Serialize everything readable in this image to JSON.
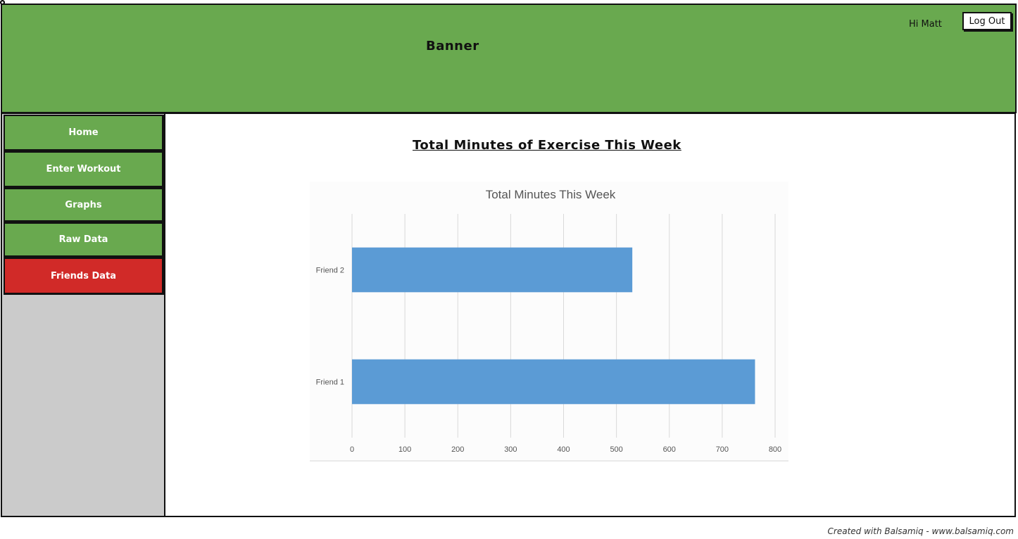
{
  "banner": {
    "title": "Banner",
    "greeting": "Hi Matt",
    "logout_label": "Log Out"
  },
  "sidebar": {
    "items": [
      {
        "label": "Home",
        "active": false
      },
      {
        "label": "Enter Workout",
        "active": false
      },
      {
        "label": "Graphs",
        "active": false
      },
      {
        "label": "Raw Data",
        "active": false
      },
      {
        "label": "Friends Data",
        "active": true
      }
    ]
  },
  "main": {
    "title": "Total Minutes of Exercise This Week"
  },
  "colors": {
    "banner_green": "#69a94f",
    "nav_active_red": "#d12a28",
    "sidebar_gray": "#cbcbcb",
    "bar_blue": "#5b9bd5"
  },
  "chart_data": {
    "type": "bar",
    "orientation": "horizontal",
    "title": "Total Minutes This Week",
    "categories": [
      "Friend 2",
      "Friend 1"
    ],
    "values": [
      530,
      762
    ],
    "xlim": [
      0,
      800
    ],
    "xticks": [
      0,
      100,
      200,
      300,
      400,
      500,
      600,
      700,
      800
    ],
    "grid": true
  },
  "footer": {
    "text": "Created with Balsamiq - www.balsamiq.com"
  }
}
